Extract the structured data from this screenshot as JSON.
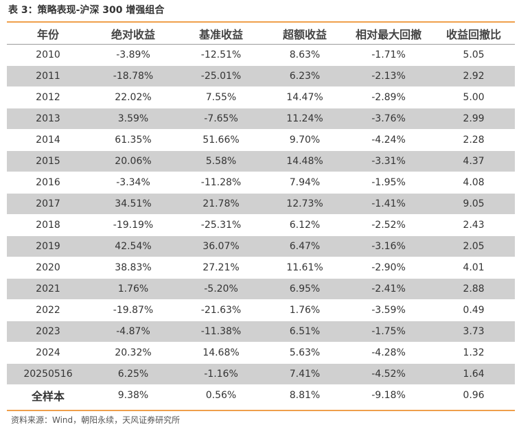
{
  "title": "表 3：策略表现-沪深 300 增强组合",
  "columns": [
    "年份",
    "绝对收益",
    "基准收益",
    "超额收益",
    "相对最大回撤",
    "收益回撤比"
  ],
  "rows": [
    [
      "2010",
      "-3.89%",
      "-12.51%",
      "8.63%",
      "-1.71%",
      "5.05"
    ],
    [
      "2011",
      "-18.78%",
      "-25.01%",
      "6.23%",
      "-2.13%",
      "2.92"
    ],
    [
      "2012",
      "22.02%",
      "7.55%",
      "14.47%",
      "-2.89%",
      "5.00"
    ],
    [
      "2013",
      "3.59%",
      "-7.65%",
      "11.24%",
      "-3.76%",
      "2.99"
    ],
    [
      "2014",
      "61.35%",
      "51.66%",
      "9.70%",
      "-4.24%",
      "2.28"
    ],
    [
      "2015",
      "20.06%",
      "5.58%",
      "14.48%",
      "-3.31%",
      "4.37"
    ],
    [
      "2016",
      "-3.34%",
      "-11.28%",
      "7.94%",
      "-1.95%",
      "4.08"
    ],
    [
      "2017",
      "34.51%",
      "21.78%",
      "12.73%",
      "-1.41%",
      "9.05"
    ],
    [
      "2018",
      "-19.19%",
      "-25.31%",
      "6.12%",
      "-2.52%",
      "2.43"
    ],
    [
      "2019",
      "42.54%",
      "36.07%",
      "6.47%",
      "-3.16%",
      "2.05"
    ],
    [
      "2020",
      "38.83%",
      "27.21%",
      "11.61%",
      "-2.90%",
      "4.01"
    ],
    [
      "2021",
      "1.76%",
      "-5.20%",
      "6.95%",
      "-2.41%",
      "2.88"
    ],
    [
      "2022",
      "-19.87%",
      "-21.63%",
      "1.76%",
      "-3.59%",
      "0.49"
    ],
    [
      "2023",
      "-4.87%",
      "-11.38%",
      "6.51%",
      "-1.75%",
      "3.73"
    ],
    [
      "2024",
      "20.32%",
      "14.68%",
      "5.63%",
      "-4.28%",
      "1.32"
    ],
    [
      "20250516",
      "6.25%",
      "-1.16%",
      "7.41%",
      "-4.52%",
      "1.64"
    ],
    [
      "全样本",
      "9.38%",
      "0.56%",
      "8.81%",
      "-9.18%",
      "0.96"
    ]
  ],
  "shading": {
    "stripe_color": "#d0d0d0",
    "accent_rule_color": "#ef9f4a"
  },
  "source": "资料来源：Wind，朝阳永续，天风证券研究所"
}
